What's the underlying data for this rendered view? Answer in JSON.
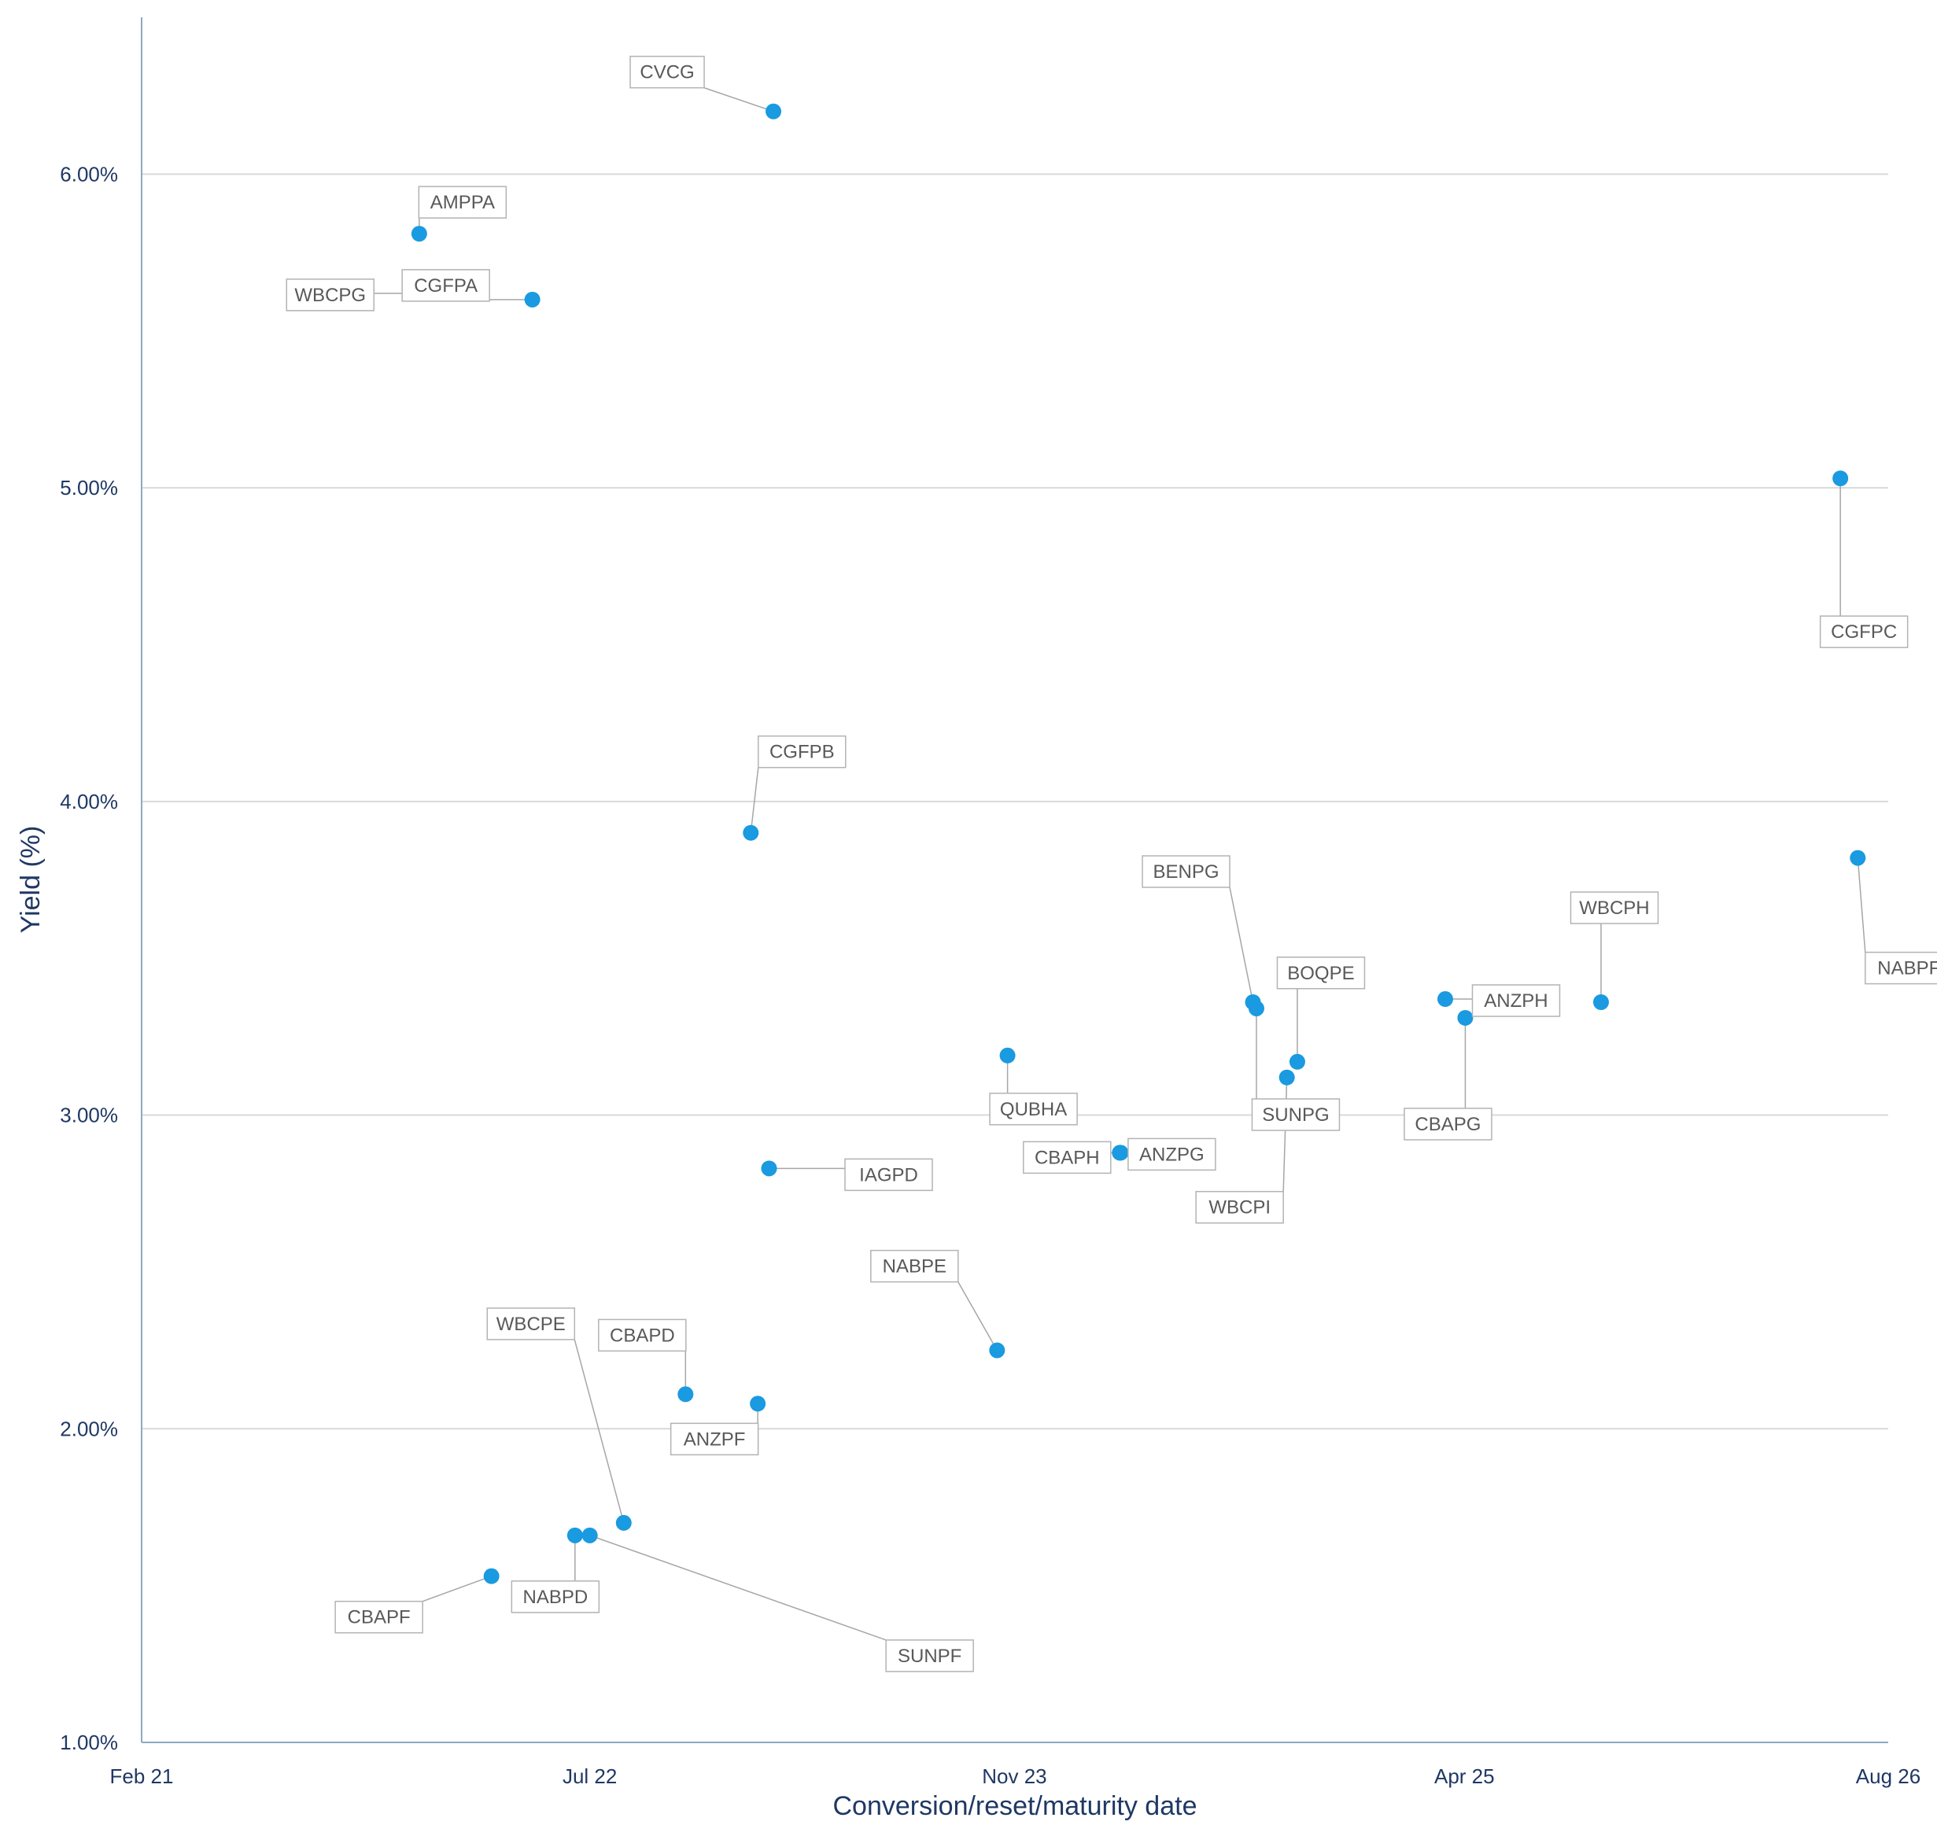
{
  "chart_data": {
    "type": "scatter",
    "title": "",
    "xlabel": "Conversion/reset/maturity date",
    "ylabel": "Yield (%)",
    "xlim": [
      "2021-02-01",
      "2026-08-01"
    ],
    "ylim": [
      1.0,
      6.5
    ],
    "x_ticks": [
      {
        "date": "2021-02-01",
        "label": "Feb 21"
      },
      {
        "date": "2022-07-01",
        "label": "Jul 22"
      },
      {
        "date": "2023-11-01",
        "label": "Nov 23"
      },
      {
        "date": "2025-04-01",
        "label": "Apr 25"
      },
      {
        "date": "2026-08-01",
        "label": "Aug 26"
      }
    ],
    "y_ticks": [
      {
        "value": 1.0,
        "label": "1.00%"
      },
      {
        "value": 2.0,
        "label": "2.00%"
      },
      {
        "value": 3.0,
        "label": "3.00%"
      },
      {
        "value": 4.0,
        "label": "4.00%"
      },
      {
        "value": 5.0,
        "label": "5.00%"
      },
      {
        "value": 6.0,
        "label": "6.00%"
      }
    ],
    "grid": true,
    "marker_color": "#1a9ae0",
    "points": [
      {
        "label": "CVCG",
        "x": "2023-01-28",
        "y": 6.2
      },
      {
        "label": "AMPPA",
        "x": "2021-12-17",
        "y": 5.81
      },
      {
        "label": "WBCPG",
        "x": "2021-12-16",
        "y": 5.62
      },
      {
        "label": "CGFPA",
        "x": "2022-04-26",
        "y": 5.6
      },
      {
        "label": "CGFPC",
        "x": "2026-06-07",
        "y": 5.03
      },
      {
        "label": "CGFPB",
        "x": "2023-01-02",
        "y": 3.9
      },
      {
        "label": "NABPF",
        "x": "2026-06-27",
        "y": 3.82
      },
      {
        "label": "BENPG",
        "x": "2024-08-01",
        "y": 3.36
      },
      {
        "label": "SUNPG",
        "x": "2024-08-05",
        "y": 3.34
      },
      {
        "label": "BOQPE",
        "x": "2024-09-21",
        "y": 3.17
      },
      {
        "label": "WBCPI",
        "x": "2024-09-09",
        "y": 3.12
      },
      {
        "label": "ANZPH",
        "x": "2025-03-10",
        "y": 3.37
      },
      {
        "label": "CBAPG",
        "x": "2025-04-02",
        "y": 3.31
      },
      {
        "label": "WBCPH",
        "x": "2025-09-05",
        "y": 3.36
      },
      {
        "label": "QUBHA",
        "x": "2023-10-24",
        "y": 3.19
      },
      {
        "label": "CBAPH",
        "x": "2024-03-01",
        "y": 2.88
      },
      {
        "label": "ANZPG",
        "x": "2024-03-02",
        "y": 2.88
      },
      {
        "label": "IAGPD",
        "x": "2023-01-23",
        "y": 2.83
      },
      {
        "label": "NABPE",
        "x": "2023-10-12",
        "y": 2.25
      },
      {
        "label": "CBAPD",
        "x": "2022-10-19",
        "y": 2.11
      },
      {
        "label": "ANZPF",
        "x": "2023-01-10",
        "y": 2.08
      },
      {
        "label": "WBCPE",
        "x": "2022-08-09",
        "y": 1.7
      },
      {
        "label": "NABPD",
        "x": "2022-06-14",
        "y": 1.66
      },
      {
        "label": "SUNPF",
        "x": "2022-07-01",
        "y": 1.66
      },
      {
        "label": "CBAPF",
        "x": "2022-03-10",
        "y": 1.53
      }
    ]
  }
}
